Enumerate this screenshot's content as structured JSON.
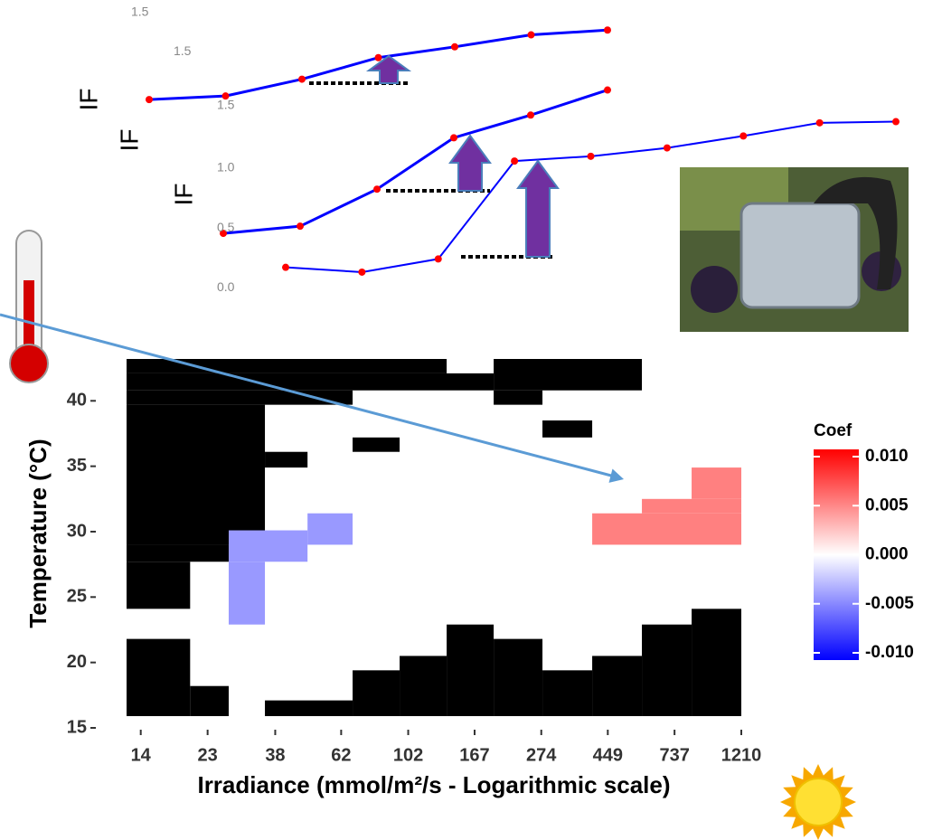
{
  "chart_data": [
    {
      "type": "heatmap",
      "ylabel": "Temperature (°C)",
      "xlabel": "Irradiance (mmol/m²/s - Logarithmic scale)",
      "xscale": "log",
      "xlim": [
        12.6,
        1210
      ],
      "xticks": [
        14,
        23,
        38,
        62,
        102,
        167,
        274,
        449,
        737,
        1210
      ],
      "ylim": [
        15,
        43.2
      ],
      "yticks": [
        15,
        20,
        25,
        30,
        35,
        40
      ],
      "colorscale": {
        "low": "#0000ff",
        "mid": "#ffffff",
        "high": "#ff0000"
      },
      "clim": [
        -0.01,
        0.01
      ],
      "na_color": "#000000",
      "legend_title": "Coef",
      "legend_ticks": [
        {
          "value": 0.01,
          "label": "0.010"
        },
        {
          "value": 0.005,
          "label": "0.005"
        },
        {
          "value": 0,
          "label": "0.000"
        },
        {
          "value": -0.005,
          "label": "-0.005"
        },
        {
          "value": -0.01,
          "label": "-0.010"
        }
      ],
      "cells": [
        {
          "x": [
            12.6,
            135.7
          ],
          "y": [
            42.1,
            43.2
          ],
          "value": null
        },
        {
          "x": [
            192.4,
            578.4
          ],
          "y": [
            40.8,
            43.2
          ],
          "value": null
        },
        {
          "x": [
            12.6,
            192.4
          ],
          "y": [
            40.8,
            42.1
          ],
          "value": null
        },
        {
          "x": [
            12.6,
            67.5
          ],
          "y": [
            39.7,
            40.8
          ],
          "value": null
        },
        {
          "x": [
            192.4,
            276.4
          ],
          "y": [
            39.7,
            40.8
          ],
          "value": null
        },
        {
          "x": [
            12.6,
            35.2
          ],
          "y": [
            29.0,
            39.7
          ],
          "value": null
        },
        {
          "x": [
            35.2,
            48.3
          ],
          "y": [
            34.9,
            36.1
          ],
          "value": null
        },
        {
          "x": [
            67.5,
            95.7
          ],
          "y": [
            36.1,
            37.2
          ],
          "value": null
        },
        {
          "x": [
            276.4,
            399.9
          ],
          "y": [
            37.2,
            38.5
          ],
          "value": null
        },
        {
          "x": [
            12.6,
            26.9
          ],
          "y": [
            27.7,
            29.0
          ],
          "value": null
        },
        {
          "x": [
            12.6,
            20.2
          ],
          "y": [
            24.1,
            27.7
          ],
          "value": null
        },
        {
          "x": [
            12.6,
            20.2
          ],
          "y": [
            15.9,
            21.8
          ],
          "value": null
        },
        {
          "x": [
            20.2,
            26.9
          ],
          "y": [
            15.9,
            18.2
          ],
          "value": null
        },
        {
          "x": [
            35.2,
            67.5
          ],
          "y": [
            15.9,
            17.1
          ],
          "value": null
        },
        {
          "x": [
            67.5,
            95.7
          ],
          "y": [
            15.9,
            19.4
          ],
          "value": null
        },
        {
          "x": [
            95.7,
            135.7
          ],
          "y": [
            15.9,
            20.5
          ],
          "value": null
        },
        {
          "x": [
            135.7,
            192.4
          ],
          "y": [
            15.9,
            22.9
          ],
          "value": null
        },
        {
          "x": [
            192.4,
            276.4
          ],
          "y": [
            15.9,
            21.8
          ],
          "value": null
        },
        {
          "x": [
            276.4,
            399.9
          ],
          "y": [
            15.9,
            19.4
          ],
          "value": null
        },
        {
          "x": [
            399.9,
            578.4
          ],
          "y": [
            15.9,
            20.5
          ],
          "value": null
        },
        {
          "x": [
            578.4,
            836.7
          ],
          "y": [
            15.9,
            22.9
          ],
          "value": null
        },
        {
          "x": [
            836.7,
            1210
          ],
          "y": [
            15.9,
            24.1
          ],
          "value": null
        },
        {
          "x": [
            26.9,
            48.3
          ],
          "y": [
            27.7,
            30.1
          ],
          "value": -0.004
        },
        {
          "x": [
            48.3,
            67.5
          ],
          "y": [
            29.0,
            31.4
          ],
          "value": -0.004
        },
        {
          "x": [
            26.9,
            35.2
          ],
          "y": [
            22.9,
            27.7
          ],
          "value": -0.004
        },
        {
          "x": [
            399.9,
            1210
          ],
          "y": [
            29.0,
            31.4
          ],
          "value": 0.005
        },
        {
          "x": [
            578.4,
            1210
          ],
          "y": [
            31.4,
            32.5
          ],
          "value": 0.005
        },
        {
          "x": [
            836.7,
            1210
          ],
          "y": [
            32.5,
            34.9
          ],
          "value": 0.005
        }
      ]
    },
    {
      "type": "line",
      "ylim": [
        1.4,
        1.6
      ],
      "yticks": [
        1.5
      ],
      "series": []
    },
    {
      "type": "line",
      "ylabel": "IF",
      "xlim": [
        0,
        6
      ],
      "ylim": [
        0.95,
        1.78
      ],
      "yticks": [
        1.5
      ],
      "marker_color": "#ff0000",
      "line_width": 3,
      "series": [
        {
          "color": "#0000ff",
          "x": [
            0,
            1,
            2,
            3,
            4,
            5,
            6
          ],
          "values": [
            1.1,
            1.13,
            1.27,
            1.45,
            1.54,
            1.64,
            1.68
          ]
        }
      ]
    },
    {
      "type": "line",
      "ylabel": "IF",
      "xlim": [
        0,
        5
      ],
      "ylim": [
        0.34,
        1.74
      ],
      "yticks": [
        1.5
      ],
      "marker_color": "#ff0000",
      "line_width": 3,
      "series": [
        {
          "color": "#0000ff",
          "x": [
            0,
            1,
            2,
            3,
            4,
            5
          ],
          "values": [
            0.43,
            0.49,
            0.8,
            1.23,
            1.42,
            1.63
          ]
        }
      ]
    },
    {
      "type": "line",
      "ylabel": "IF",
      "xlim": [
        0,
        8
      ],
      "ylim": [
        -0.09,
        1.5
      ],
      "yticks": [
        {
          "value": 1,
          "label": "1.0"
        },
        0.5,
        {
          "value": 0,
          "label": "0.0"
        }
      ],
      "marker_color": "#ff0000",
      "line_width": 2,
      "series": [
        {
          "color": "#0000ff",
          "x": [
            0,
            1,
            2,
            3,
            4,
            5,
            6,
            7,
            8
          ],
          "values": [
            0.17,
            0.13,
            0.24,
            1.06,
            1.1,
            1.17,
            1.27,
            1.38,
            1.39
          ]
        }
      ]
    }
  ]
}
